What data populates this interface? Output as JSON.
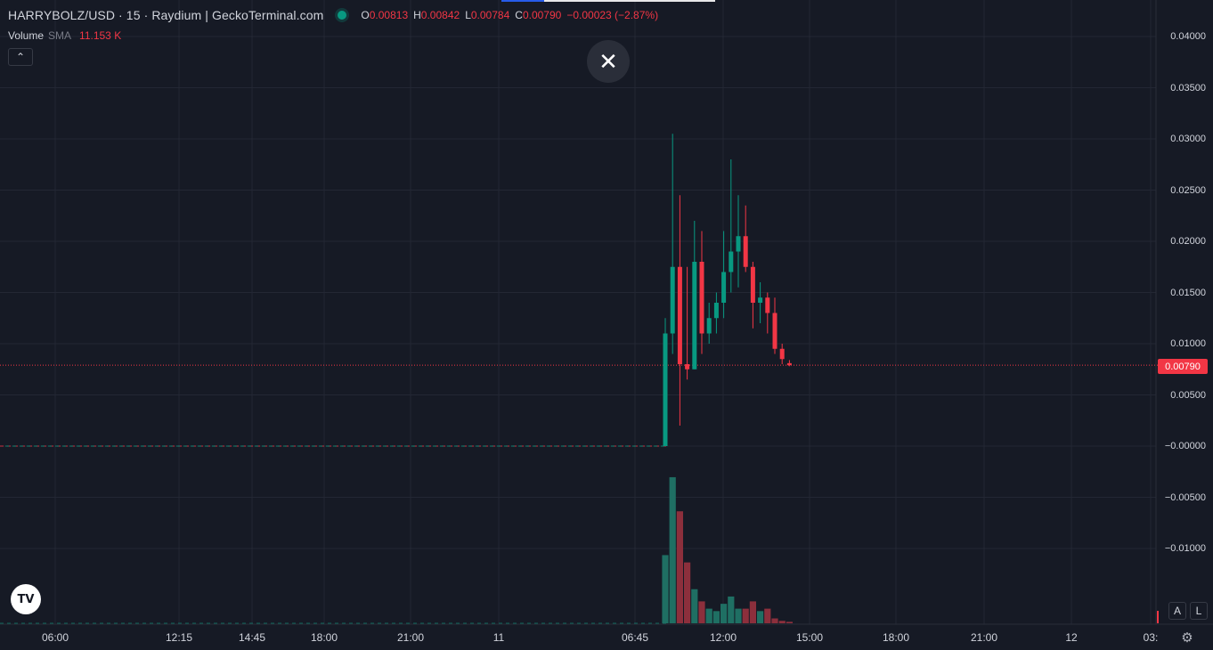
{
  "legend": {
    "title": "HARRYBOLZ/USD · 15 · Raydium | GeckoTerminal.com",
    "open_label": "O",
    "open": "0.00813",
    "high_label": "H",
    "high": "0.00842",
    "low_label": "L",
    "low": "0.00784",
    "close_label": "C",
    "close": "0.00790",
    "change": "−0.00023 (−2.87%)"
  },
  "volume": {
    "label": "Volume",
    "ma": "SMA",
    "value": "11.153 K"
  },
  "controls": {
    "collapse": "⌃",
    "close": "✕",
    "auto": "A",
    "log": "L",
    "logo": "TV"
  },
  "price_axis": {
    "labels": [
      "0.04000",
      "0.03500",
      "0.03000",
      "0.02500",
      "0.02000",
      "0.01500",
      "0.01000",
      "0.00500",
      "−0.00000",
      "−0.00500",
      "−0.01000"
    ],
    "last_price": "0.00790"
  },
  "time_axis": {
    "labels": [
      "06:00",
      "12:15",
      "14:45",
      "18:00",
      "21:00",
      "11",
      "06:45",
      "12:00",
      "15:00",
      "18:00",
      "21:00",
      "12",
      "03:"
    ]
  },
  "colors": {
    "up": "#089981",
    "down": "#f23645",
    "background": "#161a25",
    "grid": "#232734"
  },
  "chart_data": {
    "type": "candlestick",
    "ylim": [
      -0.0175,
      0.0425
    ],
    "candles": [
      {
        "o": 0.0,
        "h": 0.0125,
        "l": 0.0,
        "c": 0.011
      },
      {
        "o": 0.011,
        "h": 0.0305,
        "l": 0.009,
        "c": 0.0175
      },
      {
        "o": 0.0175,
        "h": 0.0245,
        "l": 0.002,
        "c": 0.008
      },
      {
        "o": 0.008,
        "h": 0.0175,
        "l": 0.0065,
        "c": 0.0075
      },
      {
        "o": 0.0075,
        "h": 0.022,
        "l": 0.0075,
        "c": 0.018
      },
      {
        "o": 0.018,
        "h": 0.021,
        "l": 0.009,
        "c": 0.011
      },
      {
        "o": 0.011,
        "h": 0.014,
        "l": 0.01,
        "c": 0.0125
      },
      {
        "o": 0.0125,
        "h": 0.015,
        "l": 0.011,
        "c": 0.014
      },
      {
        "o": 0.014,
        "h": 0.021,
        "l": 0.0125,
        "c": 0.017
      },
      {
        "o": 0.017,
        "h": 0.028,
        "l": 0.015,
        "c": 0.019
      },
      {
        "o": 0.019,
        "h": 0.0245,
        "l": 0.0155,
        "c": 0.0205
      },
      {
        "o": 0.0205,
        "h": 0.0235,
        "l": 0.017,
        "c": 0.0175
      },
      {
        "o": 0.0175,
        "h": 0.018,
        "l": 0.0115,
        "c": 0.014
      },
      {
        "o": 0.014,
        "h": 0.016,
        "l": 0.012,
        "c": 0.0145
      },
      {
        "o": 0.0145,
        "h": 0.015,
        "l": 0.011,
        "c": 0.013
      },
      {
        "o": 0.013,
        "h": 0.0145,
        "l": 0.009,
        "c": 0.0095
      },
      {
        "o": 0.0095,
        "h": 0.01,
        "l": 0.008,
        "c": 0.0085
      },
      {
        "o": 0.0081,
        "h": 0.0084,
        "l": 0.0078,
        "c": 0.0079
      }
    ],
    "volumes": [
      14.0,
      30.0,
      23.0,
      12.5,
      7.0,
      4.5,
      3.0,
      2.5,
      4.0,
      5.5,
      3.0,
      3.0,
      4.5,
      2.5,
      3.0,
      1.0,
      0.5,
      0.3
    ],
    "volume_max": 32.0,
    "last_price": 0.0079
  }
}
